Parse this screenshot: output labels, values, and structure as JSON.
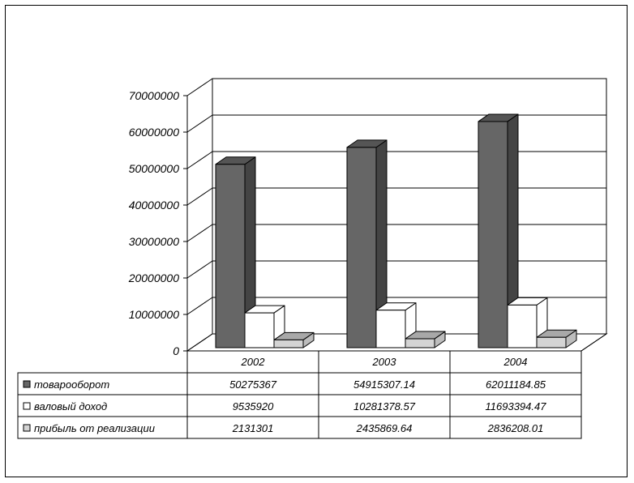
{
  "chart_data": {
    "type": "bar",
    "title": "",
    "xlabel": "",
    "ylabel": "",
    "categories": [
      "2002",
      "2003",
      "2004"
    ],
    "ylim": [
      0,
      70000000
    ],
    "yticks": [
      0,
      10000000,
      20000000,
      30000000,
      40000000,
      50000000,
      60000000,
      70000000
    ],
    "ytick_labels": [
      "0",
      "10000000",
      "20000000",
      "30000000",
      "40000000",
      "50000000",
      "60000000",
      "70000000"
    ],
    "grid": true,
    "legend": "in data table",
    "series": [
      {
        "name": "товарооборот",
        "color": "#666666",
        "values": [
          50275367,
          54915307.14,
          62011184.85
        ],
        "labels": [
          "50275367",
          "54915307.14",
          "62011184.85"
        ]
      },
      {
        "name": "валовый доход",
        "color": "#ffffff",
        "values": [
          9535920,
          10281378.57,
          11693394.47
        ],
        "labels": [
          "9535920",
          "10281378.57",
          "11693394.47"
        ]
      },
      {
        "name": "прибыль от реализации",
        "color": "#d4d4d4",
        "values": [
          2131301,
          2435869.64,
          2836208.01
        ],
        "labels": [
          "2131301",
          "2435869.64",
          "2836208.01"
        ]
      }
    ]
  }
}
